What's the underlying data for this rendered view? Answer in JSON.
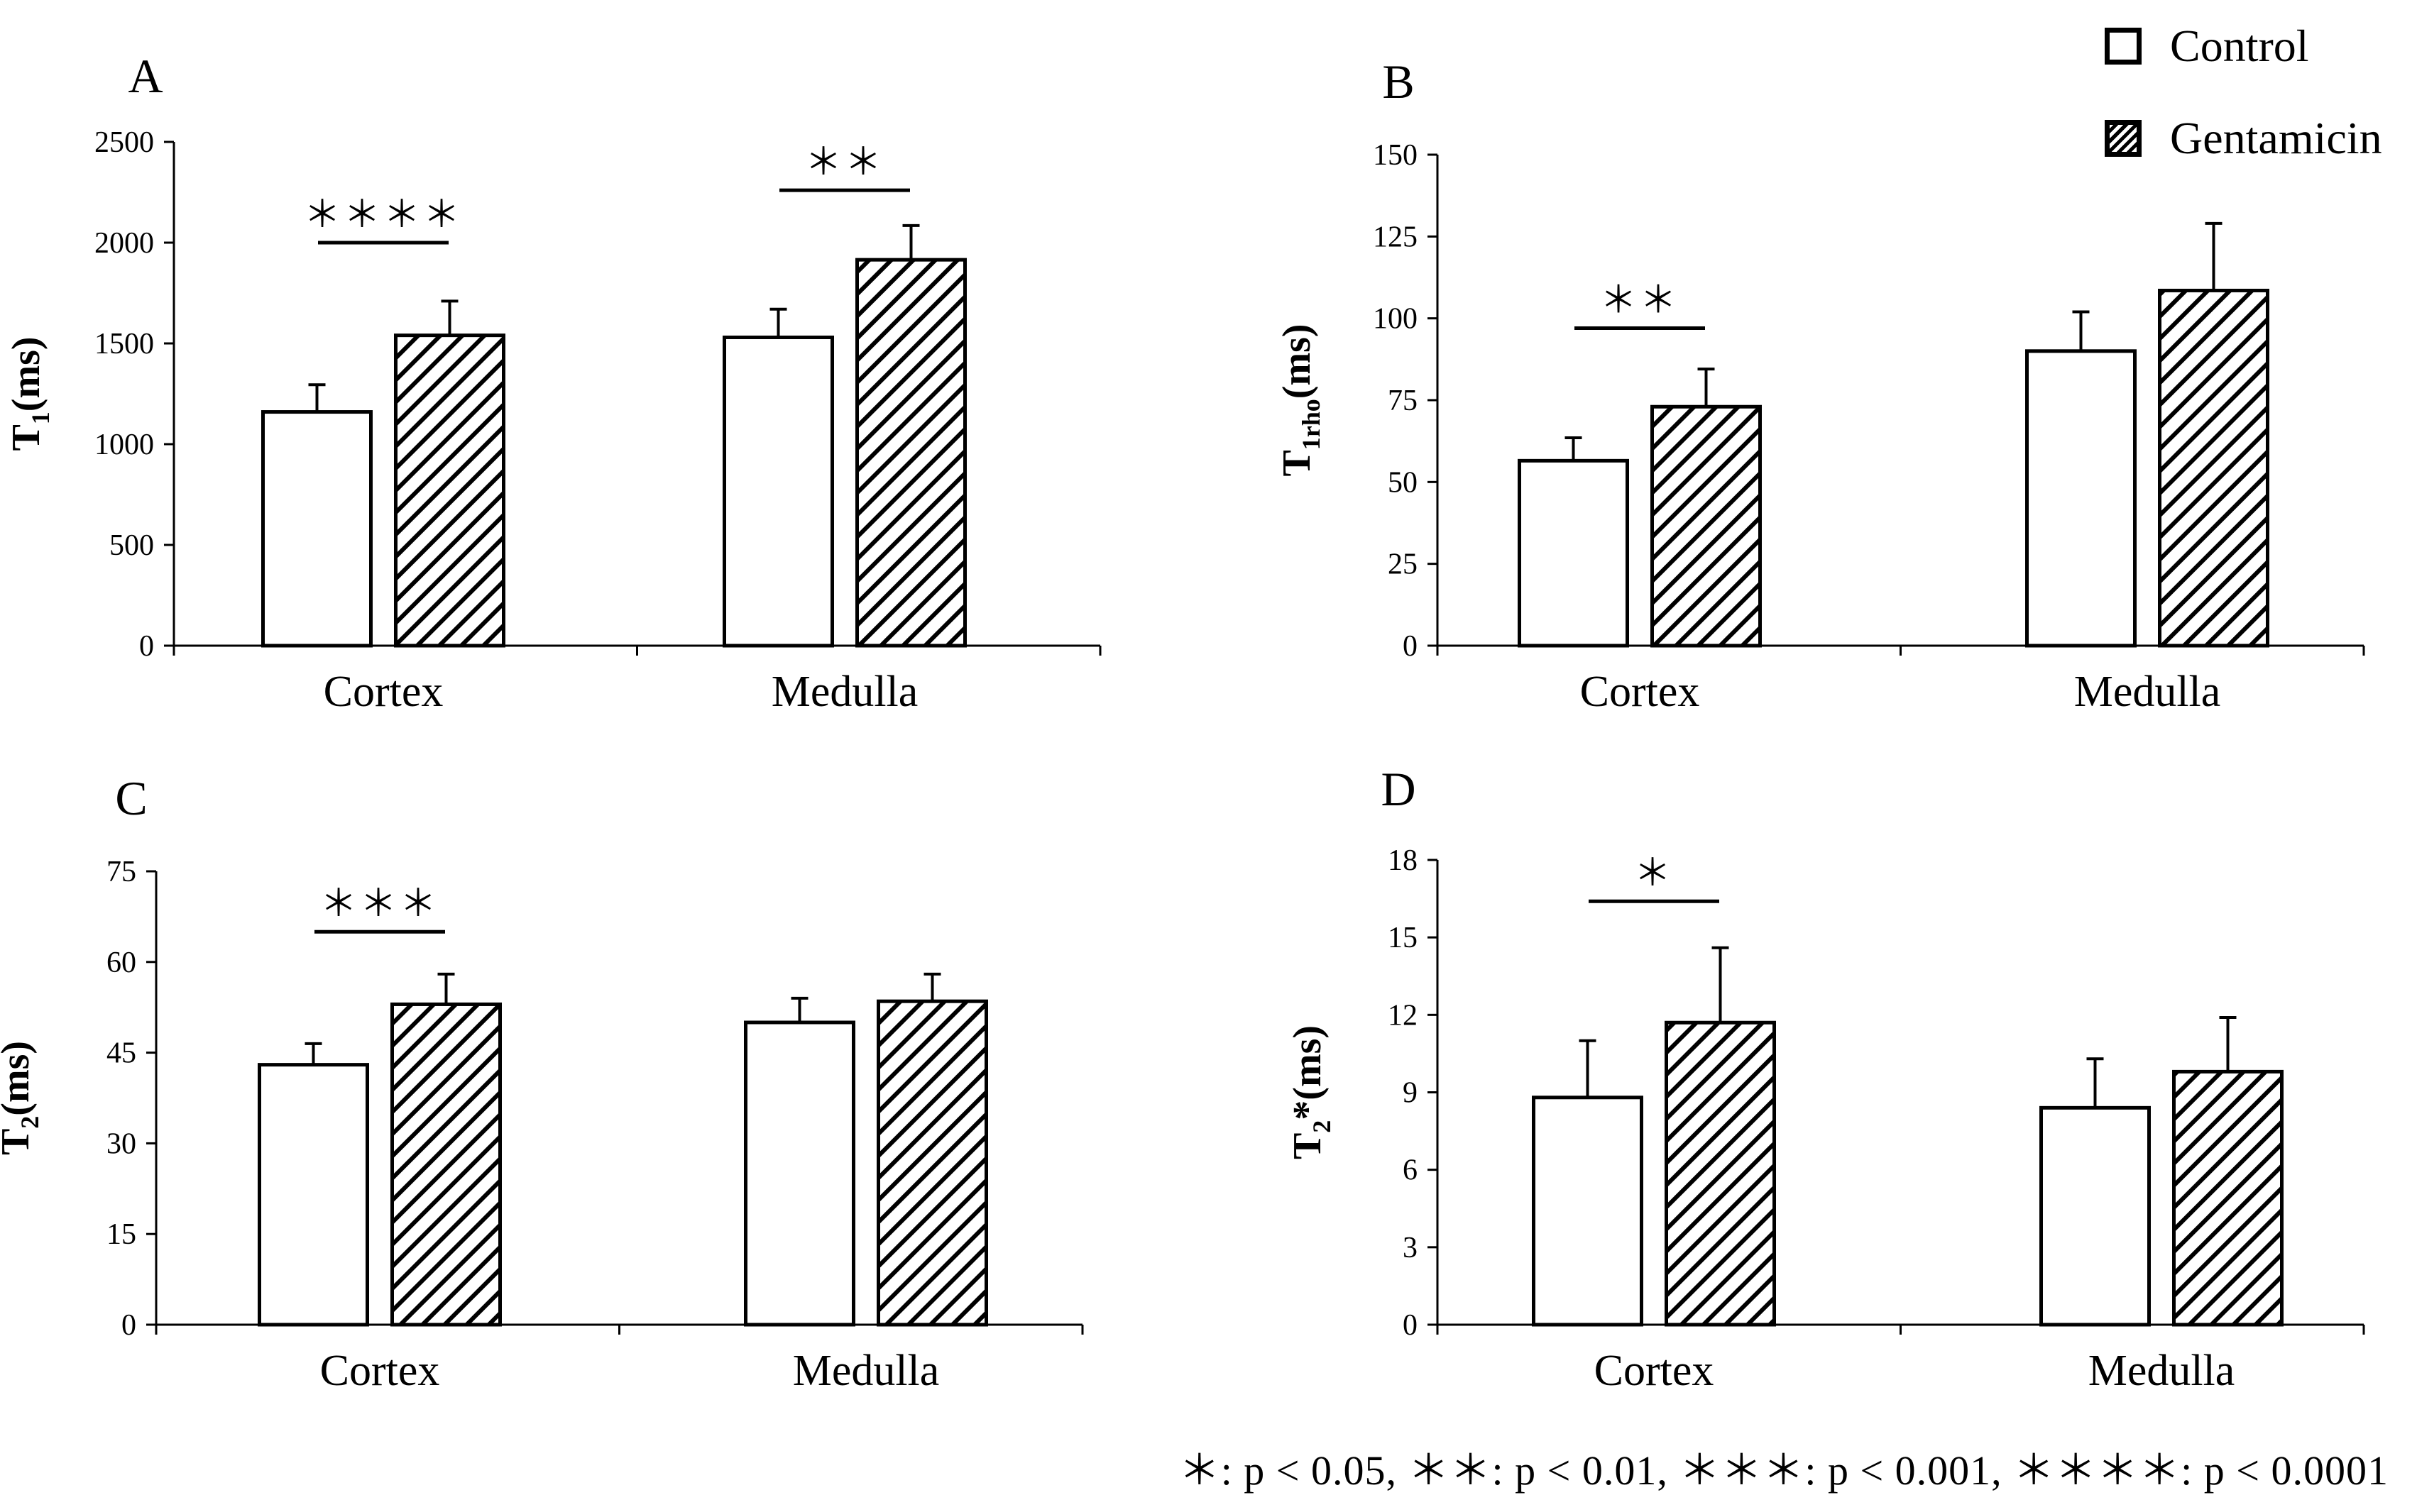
{
  "legend": {
    "control_label": "Control",
    "gentamicin_label": "Gentamicin"
  },
  "footnote": "＊: p < 0.05, ＊＊: p < 0.01, ＊＊＊: p < 0.001, ＊＊＊＊: p < 0.0001",
  "colors": {
    "control_fill": "#ffffff",
    "hatch": "#000000",
    "axis": "#000000"
  },
  "chart_data": [
    {
      "panel": "A",
      "type": "bar",
      "ylabel_main": "T",
      "ylabel_sub": "1",
      "ylabel_suffix": "(ms)",
      "categories": [
        "Cortex",
        "Medulla"
      ],
      "ylim": [
        0,
        2500
      ],
      "yticks": [
        0,
        500,
        1000,
        1500,
        2000,
        2500
      ],
      "series": [
        {
          "name": "Control",
          "values": [
            1160,
            1530
          ],
          "errors": [
            135,
            140
          ]
        },
        {
          "name": "Gentamicin",
          "values": [
            1540,
            1915
          ],
          "errors": [
            170,
            170
          ]
        }
      ],
      "significance": [
        {
          "category": 0,
          "label": "＊＊＊＊",
          "y": 2000
        },
        {
          "category": 1,
          "label": "＊＊",
          "y": 2260
        }
      ]
    },
    {
      "panel": "B",
      "type": "bar",
      "ylabel_main": "T",
      "ylabel_sub": "1rho",
      "ylabel_suffix": "(ms)",
      "categories": [
        "Cortex",
        "Medulla"
      ],
      "ylim": [
        0,
        150
      ],
      "yticks": [
        0,
        25,
        50,
        75,
        100,
        125,
        150
      ],
      "series": [
        {
          "name": "Control",
          "values": [
            56.5,
            90
          ],
          "errors": [
            7,
            12
          ]
        },
        {
          "name": "Gentamicin",
          "values": [
            73,
            108.5
          ],
          "errors": [
            11.5,
            20.5
          ]
        }
      ],
      "significance": [
        {
          "category": 0,
          "label": "＊＊",
          "y": 97
        }
      ]
    },
    {
      "panel": "C",
      "type": "bar",
      "ylabel_main": "T",
      "ylabel_sub": "2",
      "ylabel_suffix": "(ms)",
      "categories": [
        "Cortex",
        "Medulla"
      ],
      "ylim": [
        0,
        75
      ],
      "yticks": [
        0,
        15,
        30,
        45,
        60,
        75
      ],
      "series": [
        {
          "name": "Control",
          "values": [
            43,
            50
          ],
          "errors": [
            3.5,
            4
          ]
        },
        {
          "name": "Gentamicin",
          "values": [
            53,
            53.5
          ],
          "errors": [
            5,
            4.5
          ]
        }
      ],
      "significance": [
        {
          "category": 0,
          "label": "＊＊＊",
          "y": 65
        }
      ]
    },
    {
      "panel": "D",
      "type": "bar",
      "ylabel_main": "T",
      "ylabel_sub": "2",
      "ylabel_suffix": "*(ms)",
      "categories": [
        "Cortex",
        "Medulla"
      ],
      "ylim": [
        0,
        18
      ],
      "yticks": [
        0,
        3,
        6,
        9,
        12,
        15,
        18
      ],
      "series": [
        {
          "name": "Control",
          "values": [
            8.8,
            8.4
          ],
          "errors": [
            2.2,
            1.9
          ]
        },
        {
          "name": "Gentamicin",
          "values": [
            11.7,
            9.8
          ],
          "errors": [
            2.9,
            2.1
          ]
        }
      ],
      "significance": [
        {
          "category": 0,
          "label": "＊",
          "y": 16.4
        }
      ]
    }
  ]
}
